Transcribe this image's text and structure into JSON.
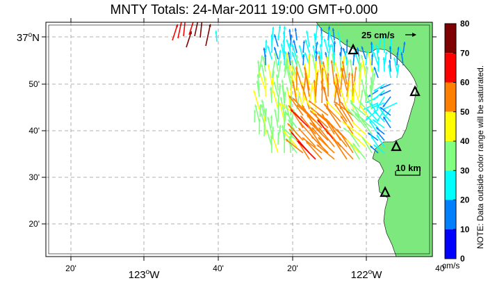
{
  "title": "MNTY Totals: 24-Mar-2011 19:00 GMT+0.000",
  "x_ticks": [
    {
      "label": "20'",
      "deg": "",
      "hem": ""
    },
    {
      "label": "123",
      "deg": "o",
      "hem": "W"
    },
    {
      "label": "40'",
      "deg": "",
      "hem": ""
    },
    {
      "label": "20'",
      "deg": "",
      "hem": ""
    },
    {
      "label": "122",
      "deg": "o",
      "hem": "W"
    },
    {
      "label": "40'",
      "deg": "",
      "hem": ""
    }
  ],
  "y_ticks": [
    {
      "label": "37",
      "deg": "o",
      "hem": "N"
    },
    {
      "label": "50'",
      "deg": "",
      "hem": ""
    },
    {
      "label": "40'",
      "deg": "",
      "hem": ""
    },
    {
      "label": "30'",
      "deg": "",
      "hem": ""
    },
    {
      "label": "20'",
      "deg": "",
      "hem": ""
    }
  ],
  "reference_vector": {
    "label": "25 cm/s"
  },
  "scale_bar": {
    "label": "10 km"
  },
  "colorbar": {
    "ticks": [
      "80",
      "70",
      "60",
      "50",
      "40",
      "30",
      "20",
      "10",
      "0"
    ],
    "unit": "cm/s",
    "colors": [
      "#7f0000",
      "#ff0000",
      "#ff8000",
      "#ffff00",
      "#80ff80",
      "#00ffff",
      "#0080ff",
      "#0000ff"
    ],
    "note": "NOTE: Data outside color range will be saturated."
  },
  "colors": {
    "land": "#7de87d",
    "grid": "#999999",
    "site_marker": "#000000"
  },
  "icons": [
    "triangle-site-marker",
    "arrow-icon"
  ]
}
